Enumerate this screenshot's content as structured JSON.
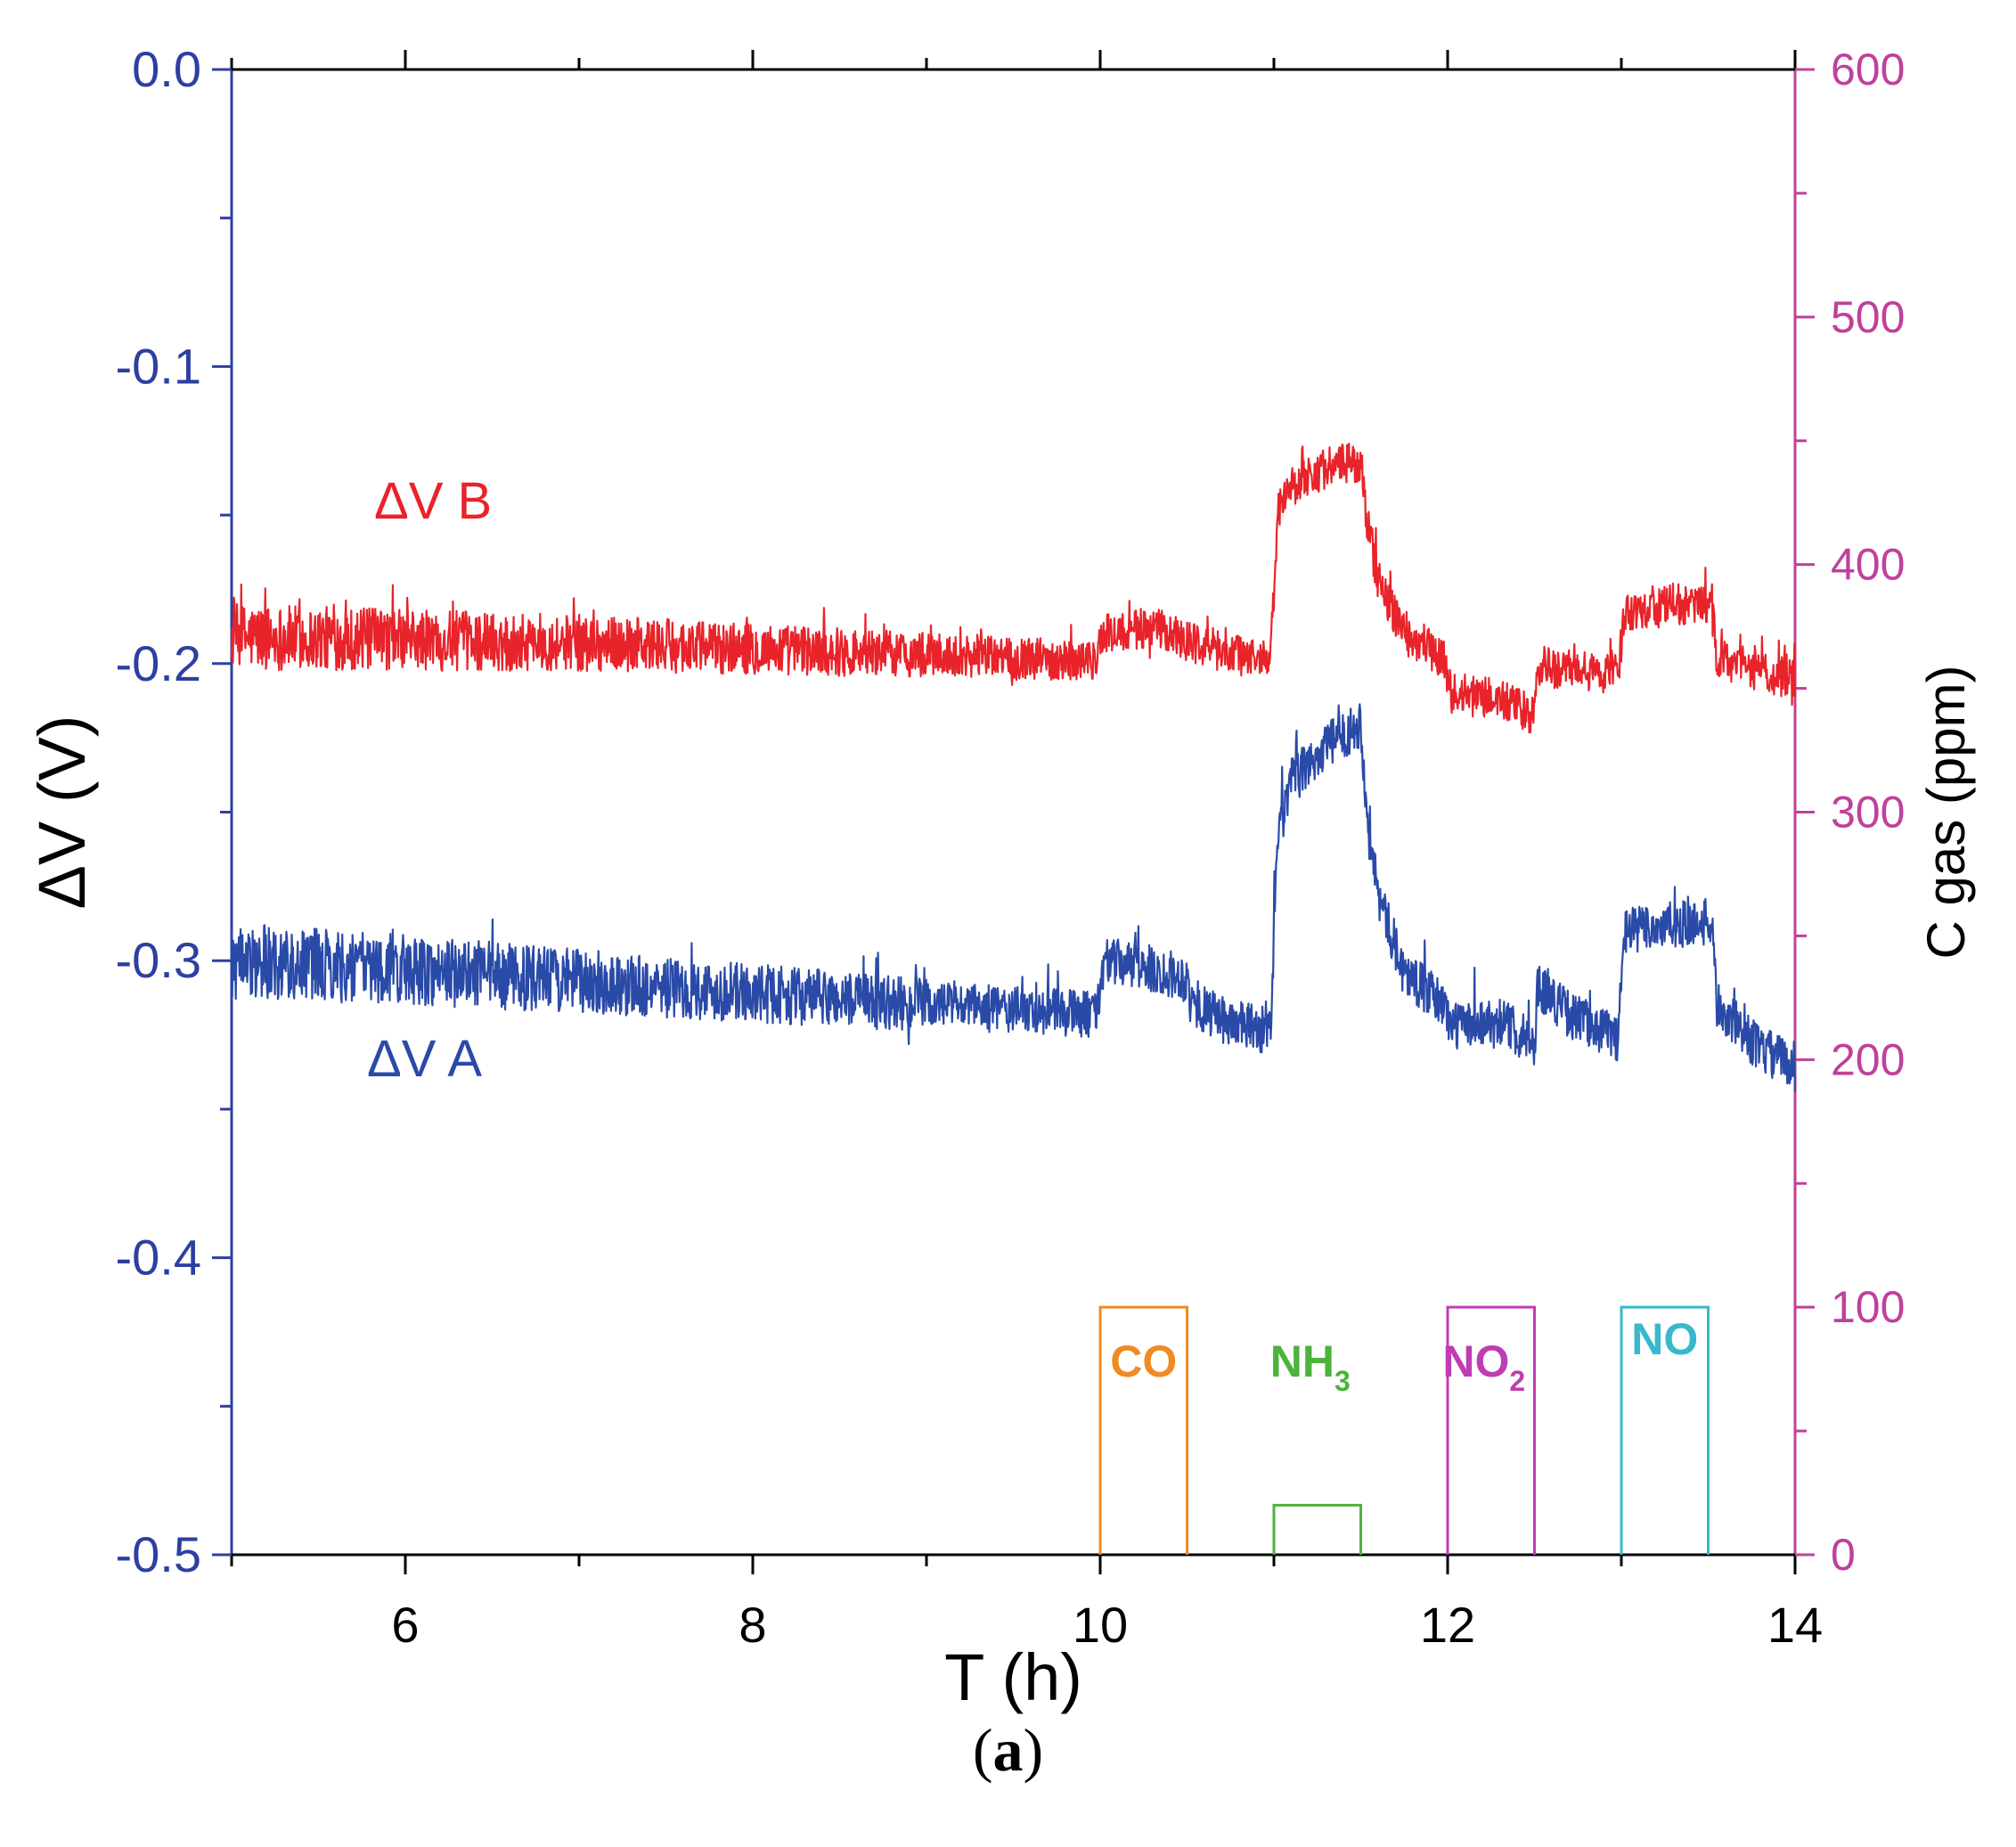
{
  "chart_data": {
    "type": "line",
    "title": "",
    "panel_label": {
      "open": "(",
      "letter": "a",
      "close": ")"
    },
    "xlabel": "T (h)",
    "ylabel_left": "ΔV (V)",
    "ylabel_right": "C gas (ppm)",
    "xlim": [
      5,
      14
    ],
    "ylim_left": [
      -0.5,
      0.0
    ],
    "ylim_right": [
      0,
      600
    ],
    "x_ticks": [
      6,
      8,
      10,
      12,
      14
    ],
    "x_tick_labels": [
      "6",
      "8",
      "10",
      "12",
      "14"
    ],
    "y_left_ticks": [
      0.0,
      -0.1,
      -0.2,
      -0.3,
      -0.4,
      -0.5
    ],
    "y_left_tick_labels": [
      "0.0",
      "-0.1",
      "-0.2",
      "-0.3",
      "-0.4",
      "-0.5"
    ],
    "y_right_ticks": [
      0,
      100,
      200,
      300,
      400,
      500,
      600
    ],
    "y_right_tick_labels": [
      "0",
      "100",
      "200",
      "300",
      "400",
      "500",
      "600"
    ],
    "grid": false,
    "colors": {
      "left_axis": "#2d3fa0",
      "right_axis": "#c0409a",
      "series_a": "#2a4aa8",
      "series_b": "#e8232a",
      "co": "#f08a24",
      "nh3": "#4db33d",
      "no2": "#c03cb4",
      "no": "#38b8cc"
    },
    "series": [
      {
        "name": "ΔV B",
        "label_text": "ΔV B",
        "axis": "left",
        "noise": 0.007,
        "points": [
          [
            5.0,
            -0.191
          ],
          [
            6.0,
            -0.192
          ],
          [
            7.0,
            -0.193
          ],
          [
            8.0,
            -0.195
          ],
          [
            9.0,
            -0.197
          ],
          [
            9.98,
            -0.199
          ],
          [
            10.02,
            -0.19
          ],
          [
            10.3,
            -0.188
          ],
          [
            10.5,
            -0.192
          ],
          [
            10.7,
            -0.196
          ],
          [
            10.98,
            -0.199
          ],
          [
            11.02,
            -0.15
          ],
          [
            11.1,
            -0.14
          ],
          [
            11.3,
            -0.134
          ],
          [
            11.5,
            -0.132
          ],
          [
            11.53,
            -0.15
          ],
          [
            11.6,
            -0.172
          ],
          [
            11.75,
            -0.19
          ],
          [
            11.98,
            -0.198
          ],
          [
            12.02,
            -0.21
          ],
          [
            12.3,
            -0.212
          ],
          [
            12.5,
            -0.218
          ],
          [
            12.52,
            -0.201
          ],
          [
            12.98,
            -0.204
          ],
          [
            13.02,
            -0.182
          ],
          [
            13.3,
            -0.18
          ],
          [
            13.52,
            -0.181
          ],
          [
            13.55,
            -0.198
          ],
          [
            13.8,
            -0.203
          ],
          [
            14.0,
            -0.205
          ]
        ]
      },
      {
        "name": "ΔV A",
        "label_text": "ΔV A",
        "axis": "left",
        "noise": 0.008,
        "points": [
          [
            5.0,
            -0.3
          ],
          [
            6.0,
            -0.303
          ],
          [
            7.0,
            -0.307
          ],
          [
            8.0,
            -0.311
          ],
          [
            9.0,
            -0.315
          ],
          [
            9.98,
            -0.318
          ],
          [
            10.02,
            -0.3
          ],
          [
            10.3,
            -0.303
          ],
          [
            10.5,
            -0.306
          ],
          [
            10.52,
            -0.314
          ],
          [
            10.7,
            -0.32
          ],
          [
            10.98,
            -0.324
          ],
          [
            11.02,
            -0.26
          ],
          [
            11.1,
            -0.24
          ],
          [
            11.3,
            -0.228
          ],
          [
            11.5,
            -0.22
          ],
          [
            11.53,
            -0.245
          ],
          [
            11.6,
            -0.278
          ],
          [
            11.75,
            -0.304
          ],
          [
            11.98,
            -0.315
          ],
          [
            12.02,
            -0.322
          ],
          [
            12.3,
            -0.32
          ],
          [
            12.5,
            -0.328
          ],
          [
            12.52,
            -0.308
          ],
          [
            12.7,
            -0.318
          ],
          [
            12.98,
            -0.326
          ],
          [
            13.02,
            -0.29
          ],
          [
            13.3,
            -0.288
          ],
          [
            13.52,
            -0.287
          ],
          [
            13.55,
            -0.315
          ],
          [
            13.8,
            -0.33
          ],
          [
            14.0,
            -0.335
          ]
        ]
      }
    ],
    "gas_pulses": [
      {
        "gas": "CO",
        "label": "CO",
        "sub": "",
        "start": 10.0,
        "end": 10.5,
        "ppm": 100
      },
      {
        "gas": "NH3",
        "label": "NH",
        "sub": "3",
        "start": 11.0,
        "end": 11.5,
        "ppm": 20
      },
      {
        "gas": "NO2",
        "label": "NO",
        "sub": "2",
        "start": 12.0,
        "end": 12.5,
        "ppm": 100
      },
      {
        "gas": "NO",
        "label": "NO",
        "sub": "",
        "start": 13.0,
        "end": 13.5,
        "ppm": 100
      }
    ]
  }
}
